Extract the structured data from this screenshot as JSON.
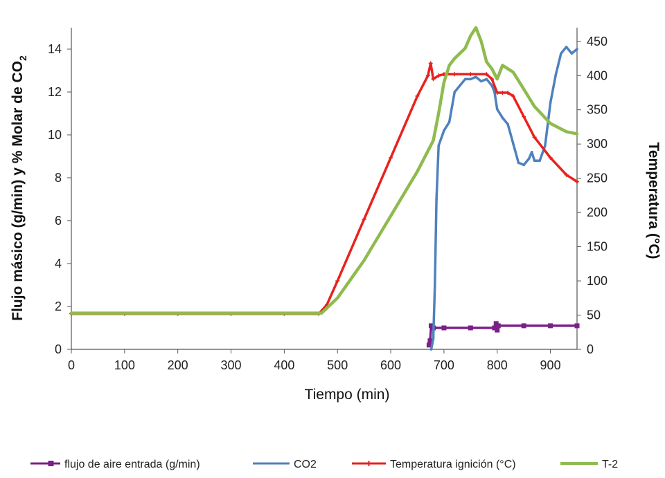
{
  "chart_data": {
    "type": "line",
    "xlabel": "Tiempo  (min)",
    "ylabel_left": "Flujo másico  (g/min) y % Molar de CO",
    "ylabel_left_sub": "2",
    "ylabel_right": "Temperatura (°C)",
    "xlim": [
      0,
      950
    ],
    "ylim_left": [
      0,
      15
    ],
    "ylim_right": [
      0,
      470
    ],
    "xticks": [
      "0",
      "100",
      "200",
      "300",
      "400",
      "500",
      "600",
      "700",
      "800",
      "900"
    ],
    "yticks_left": [
      "0",
      "2",
      "4",
      "6",
      "8",
      "10",
      "12",
      "14"
    ],
    "yticks_right": [
      "0",
      "50",
      "100",
      "150",
      "200",
      "250",
      "300",
      "350",
      "400",
      "450"
    ],
    "grid": false,
    "legend_position": "bottom",
    "series": [
      {
        "name": "flujo de aire entrada (g/min)",
        "axis": "left",
        "color": "#7b1f8a",
        "marker": "square",
        "x": [
          672,
          674,
          676,
          680,
          700,
          750,
          795,
          798,
          800,
          802,
          850,
          900,
          950
        ],
        "y": [
          0.2,
          0.4,
          1.1,
          1.0,
          1.0,
          1.0,
          1.0,
          1.2,
          0.9,
          1.1,
          1.1,
          1.1,
          1.1
        ]
      },
      {
        "name": "CO2",
        "axis": "left",
        "color": "#4f81bd",
        "marker": "none",
        "x": [
          676,
          680,
          683,
          686,
          690,
          700,
          710,
          720,
          730,
          740,
          750,
          760,
          770,
          780,
          790,
          795,
          800,
          810,
          820,
          830,
          840,
          850,
          860,
          865,
          870,
          880,
          890,
          900,
          910,
          920,
          930,
          940,
          950
        ],
        "y": [
          0,
          0.5,
          3,
          7,
          9.5,
          10.2,
          10.6,
          12.0,
          12.3,
          12.6,
          12.6,
          12.7,
          12.5,
          12.6,
          12.3,
          12.0,
          11.2,
          10.8,
          10.5,
          9.6,
          8.7,
          8.6,
          8.9,
          9.2,
          8.8,
          8.8,
          9.5,
          11.5,
          12.8,
          13.8,
          14.1,
          13.8,
          14.0
        ]
      },
      {
        "name": "Temperatura ignición (°C)",
        "axis": "right",
        "color": "#e8221f",
        "marker": "plus",
        "x": [
          0,
          100,
          200,
          300,
          400,
          465,
          480,
          500,
          550,
          600,
          650,
          670,
          675,
          680,
          690,
          700,
          720,
          750,
          780,
          790,
          800,
          810,
          820,
          830,
          850,
          870,
          900,
          930,
          950
        ],
        "y": [
          52,
          52,
          52,
          52,
          52,
          52,
          65,
          100,
          190,
          280,
          370,
          400,
          418,
          395,
          400,
          402,
          402,
          402,
          402,
          395,
          375,
          375,
          375,
          370,
          340,
          310,
          280,
          255,
          245
        ]
      },
      {
        "name": "T-2",
        "axis": "right",
        "color": "#8fbb4e",
        "marker": "none",
        "x": [
          0,
          100,
          200,
          300,
          400,
          470,
          500,
          550,
          600,
          650,
          680,
          690,
          700,
          710,
          720,
          740,
          750,
          760,
          770,
          780,
          790,
          800,
          805,
          810,
          820,
          830,
          850,
          870,
          900,
          930,
          950
        ],
        "y": [
          53,
          53,
          53,
          53,
          53,
          53,
          75,
          130,
          195,
          260,
          305,
          345,
          390,
          415,
          425,
          440,
          458,
          470,
          450,
          420,
          410,
          395,
          405,
          415,
          410,
          405,
          380,
          355,
          330,
          318,
          315
        ]
      }
    ]
  }
}
